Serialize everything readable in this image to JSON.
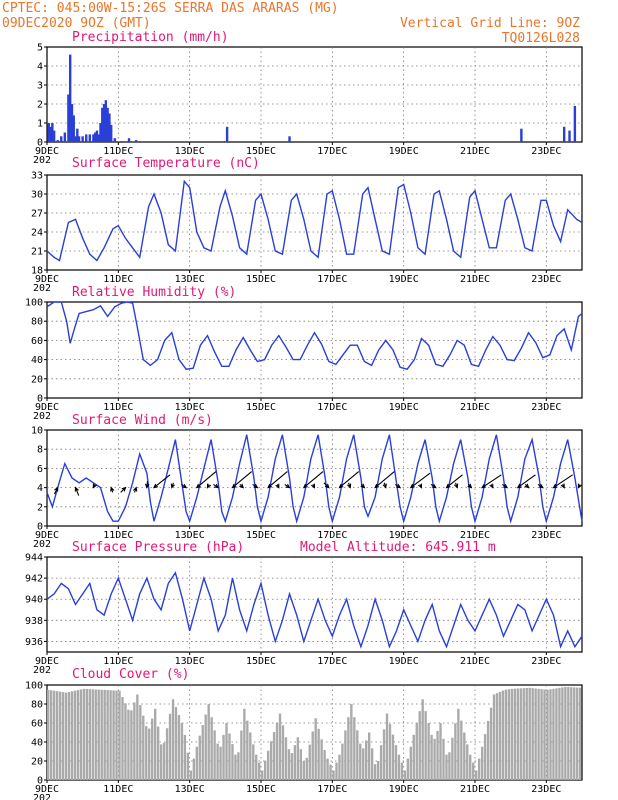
{
  "header": {
    "line1": "CPTEC:   045:00W-15:26S  SERRA DAS ARARAS (MG)",
    "line2_left": "09DEC2020 9OZ (GMT)",
    "line2_right": "Vertical Grid Line: 9OZ",
    "line3_right": "TQ0126L028"
  },
  "x_axis": {
    "tick_labels": [
      "9DEC",
      "11DEC",
      "13DEC",
      "15DEC",
      "17DEC",
      "19DEC",
      "21DEC",
      "23DEC"
    ],
    "tick_days": [
      9,
      11,
      13,
      15,
      17,
      19,
      21,
      23
    ],
    "range_days": [
      9,
      24
    ],
    "year_fragment": "202"
  },
  "colors": {
    "series_line": "#2a3fd8",
    "bars": "#2a3fd8",
    "cloud": "#aaaaaa",
    "title": "#e0187a",
    "header": "#e8762b"
  },
  "chart_data": [
    {
      "type": "bar",
      "title": "Precipitation (mm/h)",
      "ylim": [
        0,
        5
      ],
      "yticks": [
        0,
        1,
        2,
        3,
        4,
        5
      ],
      "grid": true,
      "x_days": [
        9.05,
        9.1,
        9.15,
        9.2,
        9.3,
        9.4,
        9.5,
        9.6,
        9.65,
        9.7,
        9.75,
        9.8,
        9.85,
        9.9,
        10.0,
        10.1,
        10.2,
        10.3,
        10.35,
        10.4,
        10.45,
        10.5,
        10.55,
        10.6,
        10.65,
        10.7,
        10.75,
        10.8,
        10.9,
        11.3,
        11.5,
        14.05,
        15.8,
        22.3,
        23.5,
        23.65,
        23.8
      ],
      "values": [
        1.0,
        0.8,
        1.0,
        0.6,
        0.1,
        0.3,
        0.5,
        2.5,
        4.6,
        2.0,
        1.4,
        0.3,
        0.7,
        0.3,
        0.3,
        0.4,
        0.4,
        0.4,
        0.5,
        0.6,
        0.4,
        1.0,
        1.8,
        2.0,
        2.2,
        1.8,
        1.5,
        0.9,
        0.2,
        0.2,
        0.1,
        0.8,
        0.3,
        0.7,
        0.8,
        0.6,
        1.9
      ]
    },
    {
      "type": "line",
      "title": "Surface Temperature (nC)",
      "ylim": [
        18,
        33
      ],
      "yticks": [
        18,
        21,
        24,
        27,
        30,
        33
      ],
      "grid": true,
      "x": [
        9.0,
        9.2,
        9.35,
        9.6,
        9.8,
        10.0,
        10.2,
        10.4,
        10.6,
        10.85,
        11.0,
        11.2,
        11.4,
        11.6,
        11.85,
        12.0,
        12.2,
        12.4,
        12.6,
        12.85,
        13.0,
        13.2,
        13.4,
        13.6,
        13.85,
        14.0,
        14.2,
        14.4,
        14.6,
        14.85,
        15.0,
        15.2,
        15.4,
        15.6,
        15.85,
        16.0,
        16.2,
        16.4,
        16.6,
        16.85,
        17.0,
        17.2,
        17.4,
        17.6,
        17.85,
        18.0,
        18.2,
        18.4,
        18.6,
        18.85,
        19.0,
        19.2,
        19.4,
        19.6,
        19.85,
        20.0,
        20.2,
        20.4,
        20.6,
        20.85,
        21.0,
        21.2,
        21.4,
        21.6,
        21.85,
        22.0,
        22.2,
        22.4,
        22.6,
        22.85,
        23.0,
        23.2,
        23.4,
        23.6,
        23.85,
        24.0
      ],
      "values": [
        21.0,
        20.0,
        19.5,
        25.5,
        26.0,
        23.0,
        20.5,
        19.5,
        21.5,
        24.5,
        25.0,
        23.0,
        21.5,
        20.0,
        28.0,
        30.0,
        27.0,
        22.0,
        21.0,
        32.0,
        31.0,
        24.0,
        21.5,
        21.0,
        28.0,
        30.5,
        26.5,
        21.5,
        20.5,
        29.0,
        30.0,
        26.0,
        21.0,
        20.5,
        29.0,
        30.0,
        26.0,
        21.0,
        20.0,
        30.0,
        30.5,
        26.0,
        20.5,
        20.5,
        30.0,
        31.0,
        26.0,
        21.0,
        20.5,
        31.0,
        31.5,
        27.0,
        21.5,
        20.5,
        30.0,
        30.5,
        26.0,
        21.0,
        20.0,
        29.5,
        30.5,
        26.0,
        21.5,
        21.5,
        29.0,
        30.0,
        26.0,
        21.5,
        21.0,
        29.0,
        29.0,
        25.0,
        22.5,
        27.5,
        26.0,
        25.5
      ]
    },
    {
      "type": "line",
      "title": "Relative Humidity (%)",
      "ylim": [
        0,
        100
      ],
      "yticks": [
        0,
        20,
        40,
        60,
        80,
        100
      ],
      "grid": true,
      "x": [
        9.0,
        9.2,
        9.4,
        9.55,
        9.65,
        9.75,
        9.9,
        10.1,
        10.3,
        10.5,
        10.7,
        10.9,
        11.1,
        11.25,
        11.4,
        11.5,
        11.7,
        11.9,
        12.1,
        12.3,
        12.5,
        12.7,
        12.9,
        13.1,
        13.3,
        13.5,
        13.7,
        13.9,
        14.1,
        14.3,
        14.5,
        14.7,
        14.9,
        15.1,
        15.3,
        15.5,
        15.7,
        15.9,
        16.1,
        16.3,
        16.5,
        16.7,
        16.9,
        17.1,
        17.3,
        17.5,
        17.7,
        17.9,
        18.1,
        18.3,
        18.5,
        18.7,
        18.9,
        19.1,
        19.3,
        19.5,
        19.7,
        19.9,
        20.1,
        20.3,
        20.5,
        20.7,
        20.9,
        21.1,
        21.3,
        21.5,
        21.7,
        21.9,
        22.1,
        22.3,
        22.5,
        22.7,
        22.9,
        23.1,
        23.3,
        23.5,
        23.7,
        23.9,
        24.0
      ],
      "values": [
        95.0,
        100.0,
        100.0,
        80.0,
        57.0,
        70.0,
        88.0,
        90.0,
        92.0,
        96.0,
        85.0,
        95.0,
        99.0,
        100.0,
        99.0,
        80.0,
        40.0,
        34.0,
        40.0,
        60.0,
        68.0,
        40.0,
        30.0,
        31.0,
        55.0,
        65.0,
        48.0,
        33.0,
        33.0,
        50.0,
        63.0,
        50.0,
        38.0,
        40.0,
        55.0,
        65.0,
        53.0,
        40.0,
        40.0,
        55.0,
        68.0,
        56.0,
        38.0,
        35.0,
        45.0,
        55.0,
        55.0,
        38.0,
        34.0,
        50.0,
        60.0,
        50.0,
        32.0,
        30.0,
        40.0,
        62.0,
        55.0,
        35.0,
        33.0,
        45.0,
        60.0,
        55.0,
        35.0,
        33.0,
        50.0,
        64.0,
        55.0,
        40.0,
        39.0,
        52.0,
        68.0,
        58.0,
        42.0,
        45.0,
        65.0,
        72.0,
        50.0,
        85.0,
        88.0
      ]
    },
    {
      "type": "line",
      "title": "Surface Wind (m/s)",
      "ylim": [
        0,
        10
      ],
      "yticks": [
        0,
        2,
        4,
        6,
        8,
        10
      ],
      "grid": true,
      "x": [
        9.0,
        9.15,
        9.3,
        9.5,
        9.7,
        9.9,
        10.1,
        10.3,
        10.5,
        10.7,
        10.85,
        11.0,
        11.2,
        11.4,
        11.6,
        11.8,
        11.9,
        12.0,
        12.2,
        12.4,
        12.6,
        12.8,
        12.9,
        13.0,
        13.2,
        13.4,
        13.6,
        13.8,
        13.9,
        14.0,
        14.2,
        14.4,
        14.6,
        14.8,
        14.9,
        15.0,
        15.2,
        15.4,
        15.6,
        15.8,
        15.9,
        16.0,
        16.2,
        16.4,
        16.6,
        16.8,
        16.9,
        17.0,
        17.2,
        17.4,
        17.6,
        17.8,
        17.9,
        18.0,
        18.2,
        18.4,
        18.6,
        18.8,
        18.9,
        19.0,
        19.2,
        19.4,
        19.6,
        19.8,
        19.9,
        20.0,
        20.2,
        20.4,
        20.6,
        20.8,
        20.9,
        21.0,
        21.2,
        21.4,
        21.6,
        21.8,
        21.9,
        22.0,
        22.2,
        22.4,
        22.6,
        22.8,
        22.9,
        23.0,
        23.2,
        23.4,
        23.6,
        23.8,
        24.0
      ],
      "values": [
        3.5,
        2.0,
        4.0,
        6.5,
        5.0,
        4.5,
        5.0,
        4.5,
        4.0,
        1.5,
        0.5,
        0.5,
        2.0,
        4.5,
        7.5,
        5.5,
        2.5,
        0.5,
        3.0,
        6.0,
        9.0,
        4.0,
        1.5,
        0.5,
        3.0,
        6.0,
        9.0,
        4.5,
        1.5,
        0.5,
        3.0,
        6.5,
        9.5,
        5.0,
        2.0,
        0.5,
        3.0,
        7.0,
        9.5,
        5.0,
        2.0,
        0.5,
        3.0,
        7.0,
        9.5,
        5.0,
        2.0,
        0.5,
        3.0,
        7.0,
        9.5,
        5.0,
        2.0,
        1.0,
        3.0,
        7.0,
        9.5,
        4.5,
        2.0,
        0.5,
        3.0,
        6.5,
        9.0,
        5.0,
        2.0,
        0.5,
        3.0,
        6.5,
        9.0,
        5.0,
        2.0,
        0.5,
        3.0,
        7.0,
        9.5,
        5.0,
        2.0,
        0.5,
        3.0,
        7.0,
        9.0,
        5.0,
        2.0,
        0.5,
        3.0,
        6.5,
        9.0,
        5.0,
        0.5
      ],
      "wind_arrows": {
        "x": [
          9.3,
          9.8,
          10.3,
          10.8,
          11.2,
          11.5,
          11.8,
          12.0,
          12.5,
          12.9,
          13.2,
          13.5,
          13.8,
          14.2,
          14.5,
          14.9,
          15.2,
          15.5,
          15.8,
          16.2,
          16.5,
          16.9,
          17.2,
          17.5,
          17.9,
          18.2,
          18.5,
          18.9,
          19.2,
          19.5,
          19.9,
          20.2,
          20.5,
          20.9,
          21.2,
          21.5,
          21.9,
          22.2,
          22.5,
          22.9,
          23.2,
          23.5,
          23.9
        ],
        "u": [
          -1.0,
          1.0,
          0.5,
          0.5,
          -1.5,
          -0.5,
          0.2,
          5.0,
          0.5,
          -1.5,
          6.0,
          0.5,
          -1.5,
          6.0,
          -1.0,
          -1.5,
          6.0,
          -0.5,
          -1.5,
          6.0,
          -0.5,
          -1.5,
          6.0,
          -0.5,
          -1.0,
          6.0,
          -0.5,
          -1.5,
          6.0,
          -0.5,
          -1.5,
          5.0,
          -0.5,
          -1.0,
          6.0,
          -0.5,
          -1.5,
          5.5,
          -1.0,
          -1.5,
          6.0,
          -0.5,
          0.5
        ],
        "v": [
          -2.0,
          -2.5,
          1.0,
          -1.5,
          -1.5,
          -1.5,
          2.0,
          4.0,
          1.5,
          1.0,
          5.0,
          1.0,
          1.0,
          5.0,
          1.0,
          1.0,
          5.0,
          1.0,
          1.0,
          5.0,
          1.0,
          1.5,
          5.0,
          1.5,
          1.0,
          5.0,
          1.5,
          1.0,
          4.5,
          1.0,
          1.0,
          4.0,
          1.5,
          1.0,
          4.0,
          1.0,
          1.0,
          4.0,
          1.0,
          1.0,
          4.0,
          1.0,
          1.0
        ]
      }
    },
    {
      "type": "line",
      "title": "Surface Pressure (hPa)",
      "annotation": "Model Altitude: 645.911 m",
      "ylim": [
        935,
        944
      ],
      "yticks": [
        936,
        938,
        940,
        942,
        944
      ],
      "grid": true,
      "x": [
        9.0,
        9.2,
        9.4,
        9.6,
        9.8,
        10.0,
        10.2,
        10.4,
        10.6,
        10.8,
        11.0,
        11.2,
        11.4,
        11.6,
        11.8,
        12.0,
        12.2,
        12.4,
        12.6,
        12.8,
        13.0,
        13.2,
        13.4,
        13.6,
        13.8,
        14.0,
        14.2,
        14.4,
        14.6,
        14.8,
        15.0,
        15.2,
        15.4,
        15.6,
        15.8,
        16.0,
        16.2,
        16.4,
        16.6,
        16.8,
        17.0,
        17.2,
        17.4,
        17.6,
        17.8,
        18.0,
        18.2,
        18.4,
        18.6,
        18.8,
        19.0,
        19.2,
        19.4,
        19.6,
        19.8,
        20.0,
        20.2,
        20.4,
        20.6,
        20.8,
        21.0,
        21.2,
        21.4,
        21.6,
        21.8,
        22.0,
        22.2,
        22.4,
        22.6,
        22.8,
        23.0,
        23.2,
        23.4,
        23.6,
        23.8,
        24.0
      ],
      "values": [
        940.0,
        940.5,
        941.5,
        941.0,
        939.5,
        940.5,
        941.5,
        939.0,
        938.5,
        940.5,
        942.0,
        940.0,
        938.0,
        940.5,
        942.0,
        940.0,
        939.0,
        941.5,
        942.5,
        940.0,
        937.0,
        939.5,
        942.0,
        940.0,
        937.0,
        938.5,
        942.0,
        939.0,
        937.0,
        939.5,
        941.5,
        938.5,
        936.0,
        938.0,
        940.5,
        938.5,
        936.0,
        938.0,
        940.0,
        938.0,
        936.5,
        938.5,
        940.0,
        937.5,
        935.5,
        937.5,
        940.0,
        938.0,
        935.5,
        937.0,
        939.0,
        937.5,
        936.0,
        938.0,
        939.5,
        937.0,
        935.5,
        937.5,
        939.5,
        938.0,
        937.0,
        938.5,
        940.0,
        938.5,
        936.5,
        938.0,
        939.5,
        939.0,
        937.0,
        938.5,
        940.0,
        938.5,
        935.5,
        937.0,
        935.5,
        936.5
      ]
    },
    {
      "type": "area",
      "title": "Cloud Cover (%)",
      "ylim": [
        0,
        100
      ],
      "yticks": [
        0,
        20,
        40,
        60,
        80,
        100
      ],
      "grid": true,
      "x": [
        9.0,
        9.5,
        10.0,
        10.5,
        11.0,
        11.3,
        11.5,
        11.8,
        12.0,
        12.2,
        12.5,
        12.8,
        13.0,
        13.2,
        13.5,
        13.8,
        14.0,
        14.3,
        14.5,
        14.8,
        15.0,
        15.2,
        15.5,
        15.8,
        16.0,
        16.2,
        16.5,
        16.8,
        17.0,
        17.2,
        17.5,
        17.8,
        18.0,
        18.2,
        18.5,
        18.8,
        19.0,
        19.2,
        19.5,
        19.8,
        20.0,
        20.2,
        20.5,
        20.8,
        21.0,
        21.2,
        21.5,
        21.8,
        22.0,
        22.5,
        23.0,
        23.5,
        24.0
      ],
      "values": [
        95,
        92,
        96,
        95,
        94,
        70,
        90,
        50,
        75,
        30,
        85,
        55,
        10,
        40,
        80,
        30,
        60,
        20,
        75,
        30,
        10,
        35,
        70,
        25,
        45,
        15,
        65,
        25,
        10,
        30,
        80,
        30,
        50,
        10,
        70,
        30,
        10,
        40,
        85,
        40,
        60,
        20,
        75,
        30,
        10,
        40,
        90,
        95,
        96,
        97,
        95,
        98,
        97
      ]
    }
  ]
}
